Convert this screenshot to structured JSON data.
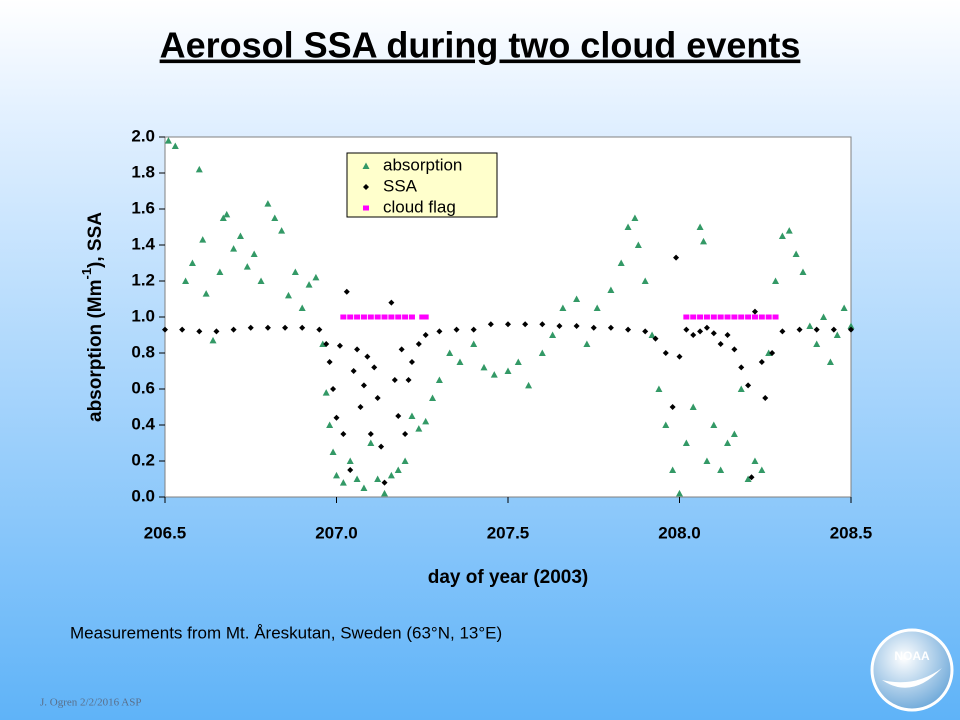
{
  "chart_data": {
    "type": "scatter",
    "title": "Aerosol SSA during two cloud events",
    "ylabel": "absorption (Mm",
    "ylabel_sup": "-1",
    "ylabel_end": "), SSA",
    "xlabel": "day of year (2003)",
    "note": "Measurements from Mt. Åreskutan, Sweden (63°N, 13°E)",
    "footer": "J. Ogren  2/2/2016 ASP",
    "logo": "NOAA",
    "grid": false,
    "legend": "top-center",
    "xlim": [
      206.5,
      208.5
    ],
    "xticks": [
      206.5,
      {
        "value": 207,
        "label": "207.0"
      },
      207.5,
      {
        "value": 208,
        "label": "208.0"
      },
      208.5
    ],
    "ylim": [
      0,
      2
    ],
    "yticks": [
      {
        "value": 0,
        "label": "0.0"
      },
      0.2,
      0.4,
      0.6,
      0.8,
      {
        "value": 1,
        "label": "1.0"
      },
      1.2,
      1.4,
      1.6,
      1.8,
      {
        "value": 2,
        "label": "2.0"
      }
    ],
    "series": [
      {
        "name": "absorption",
        "color": "#339966",
        "marker": "triangle",
        "x": [
          206.51,
          206.53,
          206.56,
          206.58,
          206.6,
          206.61,
          206.62,
          206.64,
          206.66,
          206.67,
          206.68,
          206.7,
          206.72,
          206.74,
          206.76,
          206.78,
          206.8,
          206.82,
          206.84,
          206.86,
          206.88,
          206.9,
          206.92,
          206.94,
          206.96,
          206.97,
          206.98,
          206.99,
          207.0,
          207.02,
          207.04,
          207.06,
          207.08,
          207.1,
          207.12,
          207.14,
          207.16,
          207.18,
          207.2,
          207.22,
          207.24,
          207.26,
          207.28,
          207.3,
          207.33,
          207.36,
          207.4,
          207.43,
          207.46,
          207.5,
          207.53,
          207.56,
          207.6,
          207.63,
          207.66,
          207.7,
          207.73,
          207.76,
          207.8,
          207.83,
          207.85,
          207.87,
          207.88,
          207.9,
          207.92,
          207.94,
          207.96,
          207.98,
          208.0,
          208.02,
          208.04,
          208.06,
          208.07,
          208.08,
          208.1,
          208.12,
          208.14,
          208.16,
          208.18,
          208.2,
          208.22,
          208.24,
          208.26,
          208.28,
          208.3,
          208.32,
          208.34,
          208.36,
          208.38,
          208.4,
          208.42,
          208.44,
          208.46,
          208.48,
          208.5
        ],
        "values": [
          1.98,
          1.95,
          1.2,
          1.3,
          1.82,
          1.43,
          1.13,
          0.87,
          1.25,
          1.55,
          1.57,
          1.38,
          1.45,
          1.28,
          1.35,
          1.2,
          1.63,
          1.55,
          1.48,
          1.12,
          1.25,
          1.05,
          1.18,
          1.22,
          0.85,
          0.58,
          0.4,
          0.25,
          0.12,
          0.08,
          0.2,
          0.1,
          0.05,
          0.3,
          0.1,
          0.02,
          0.12,
          0.15,
          0.2,
          0.45,
          0.38,
          0.42,
          0.55,
          0.65,
          0.8,
          0.75,
          0.85,
          0.72,
          0.68,
          0.7,
          0.75,
          0.62,
          0.8,
          0.9,
          1.05,
          1.1,
          0.85,
          1.05,
          1.15,
          1.3,
          1.5,
          1.55,
          1.4,
          1.2,
          0.9,
          0.6,
          0.4,
          0.15,
          0.02,
          0.3,
          0.5,
          1.5,
          1.42,
          0.2,
          0.4,
          0.15,
          0.3,
          0.35,
          0.6,
          0.1,
          0.2,
          0.15,
          0.8,
          1.2,
          1.45,
          1.48,
          1.35,
          1.25,
          0.95,
          0.85,
          1.0,
          0.75,
          0.9,
          1.05,
          0.95
        ]
      },
      {
        "name": "SSA",
        "color": "#000000",
        "marker": "diamond",
        "x": [
          206.5,
          206.55,
          206.6,
          206.65,
          206.7,
          206.75,
          206.8,
          206.85,
          206.9,
          206.95,
          206.97,
          206.98,
          206.99,
          207.0,
          207.01,
          207.02,
          207.03,
          207.04,
          207.05,
          207.06,
          207.07,
          207.08,
          207.09,
          207.1,
          207.11,
          207.12,
          207.13,
          207.14,
          207.16,
          207.17,
          207.18,
          207.19,
          207.2,
          207.21,
          207.22,
          207.24,
          207.26,
          207.3,
          207.35,
          207.4,
          207.45,
          207.5,
          207.55,
          207.6,
          207.65,
          207.7,
          207.75,
          207.8,
          207.85,
          207.9,
          207.93,
          207.96,
          207.98,
          207.99,
          208.0,
          208.02,
          208.04,
          208.06,
          208.08,
          208.1,
          208.12,
          208.14,
          208.16,
          208.18,
          208.2,
          208.21,
          208.22,
          208.24,
          208.25,
          208.27,
          208.3,
          208.35,
          208.4,
          208.45,
          208.5
        ],
        "values": [
          0.93,
          0.93,
          0.92,
          0.92,
          0.93,
          0.94,
          0.94,
          0.94,
          0.94,
          0.93,
          0.85,
          0.75,
          0.6,
          0.44,
          0.84,
          0.35,
          1.14,
          0.15,
          0.7,
          0.82,
          0.5,
          0.62,
          0.78,
          0.35,
          0.72,
          0.55,
          0.28,
          0.08,
          1.08,
          0.65,
          0.45,
          0.82,
          0.35,
          0.65,
          0.75,
          0.85,
          0.9,
          0.92,
          0.93,
          0.93,
          0.96,
          0.96,
          0.96,
          0.96,
          0.95,
          0.95,
          0.94,
          0.94,
          0.93,
          0.92,
          0.88,
          0.8,
          0.5,
          1.33,
          0.78,
          0.93,
          0.9,
          0.92,
          0.94,
          0.91,
          0.85,
          0.9,
          0.82,
          0.72,
          0.62,
          0.11,
          1.03,
          0.75,
          0.55,
          0.8,
          0.92,
          0.93,
          0.93,
          0.93,
          0.93
        ]
      },
      {
        "name": "cloud flag",
        "color": "#ff00ff",
        "marker": "square",
        "x": [
          207.02,
          207.04,
          207.06,
          207.08,
          207.1,
          207.12,
          207.14,
          207.16,
          207.18,
          207.2,
          207.22,
          207.25,
          207.26,
          208.02,
          208.04,
          208.06,
          208.08,
          208.1,
          208.12,
          208.14,
          208.16,
          208.18,
          208.2,
          208.22,
          208.24,
          208.26,
          208.28
        ],
        "values": [
          1,
          1,
          1,
          1,
          1,
          1,
          1,
          1,
          1,
          1,
          1,
          1,
          1,
          1,
          1,
          1,
          1,
          1,
          1,
          1,
          1,
          1,
          1,
          1,
          1,
          1,
          1
        ]
      }
    ]
  }
}
